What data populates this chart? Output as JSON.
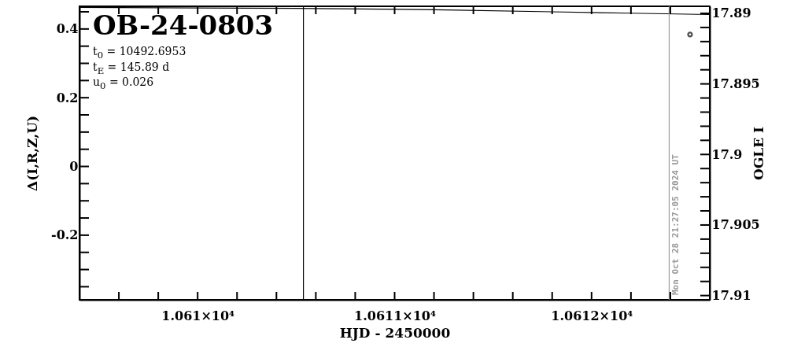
{
  "chart_data": {
    "type": "line",
    "title": "OB-24-0803",
    "annotations": [
      "t$_{0}$ = 10492.6953",
      "t$_{E}$ = 145.89 d",
      "u$_{0}$ = 0.026",
      {
        "text": "Mon Oct 28 21:27:05 2024 UT",
        "x": 10612.394
      }
    ],
    "xlabel": "HJD - 2450000",
    "ylabel": "Δ(I,R,Z,U)",
    "y2label": "OGLE I",
    "series": [
      {
        "color": "#000000",
        "x": [
          10609.4,
          10610.5,
          10611.2,
          10611.8,
          10612.2,
          10612.6
        ],
        "values": [
          0.463,
          0.46,
          0.456,
          0.45,
          0.446,
          0.442
        ]
      },
      {
        "type": "scatter",
        "axis": "y2",
        "marker": "circle",
        "color": "#000000",
        "x": [
          10612.5
        ],
        "values": [
          17.8915
        ]
      }
    ],
    "xlim": [
      10609.4,
      10612.6
    ],
    "xticks": [
      {
        "value": 10609.6,
        "label": null
      },
      {
        "value": 10609.8,
        "label": null
      },
      {
        "value": 10610,
        "label": "1.061×10⁴"
      },
      {
        "value": 10610.2,
        "label": null
      },
      {
        "value": 10610.4,
        "label": null
      },
      {
        "value": 10610.6,
        "label": null
      },
      {
        "value": 10610.8,
        "label": null
      },
      {
        "value": 10611,
        "label": "1.0611×10⁴"
      },
      {
        "value": 10611.2,
        "label": null
      },
      {
        "value": 10611.4,
        "label": null
      },
      {
        "value": 10611.6,
        "label": null
      },
      {
        "value": 10611.8,
        "label": null
      },
      {
        "value": 10612,
        "label": "1.0612×10⁴"
      },
      {
        "value": 10612.2,
        "label": null
      },
      {
        "value": 10612.4,
        "label": null
      }
    ],
    "ylim": [
      -0.388,
      0.466
    ],
    "yticks": [
      {
        "value": -0.35,
        "label": null
      },
      {
        "value": -0.3,
        "label": null
      },
      {
        "value": -0.25,
        "label": null
      },
      -0.2,
      {
        "value": -0.15,
        "label": null
      },
      {
        "value": -0.1,
        "label": null
      },
      {
        "value": -0.05,
        "label": null
      },
      0,
      {
        "value": 0.05,
        "label": null
      },
      {
        "value": 0.1,
        "label": null
      },
      {
        "value": 0.15,
        "label": null
      },
      0.2,
      {
        "value": 0.25,
        "label": null
      },
      {
        "value": 0.3,
        "label": null
      },
      {
        "value": 0.35,
        "label": null
      },
      0.4,
      {
        "value": 0.45,
        "label": null
      }
    ],
    "y2lim": [
      17.9103,
      17.8895
    ],
    "y2ticks": [
      17.89,
      {
        "value": 17.891,
        "label": null
      },
      {
        "value": 17.892,
        "label": null
      },
      {
        "value": 17.893,
        "label": null
      },
      {
        "value": 17.894,
        "label": null
      },
      17.895,
      {
        "value": 17.896,
        "label": null
      },
      {
        "value": 17.897,
        "label": null
      },
      {
        "value": 17.898,
        "label": null
      },
      {
        "value": 17.899,
        "label": null
      },
      17.9,
      {
        "value": 17.901,
        "label": null
      },
      {
        "value": 17.902,
        "label": null
      },
      {
        "value": 17.903,
        "label": null
      },
      {
        "value": 17.904,
        "label": null
      },
      17.905,
      {
        "value": 17.906,
        "label": null
      },
      {
        "value": 17.907,
        "label": null
      },
      {
        "value": 17.908,
        "label": null
      },
      {
        "value": 17.909,
        "label": null
      },
      17.91
    ],
    "ref_lines": [
      {
        "axis": "x",
        "value": 10610.537,
        "color": "#000000"
      },
      {
        "axis": "x",
        "value": 10612.394,
        "color": "#999999"
      }
    ]
  }
}
